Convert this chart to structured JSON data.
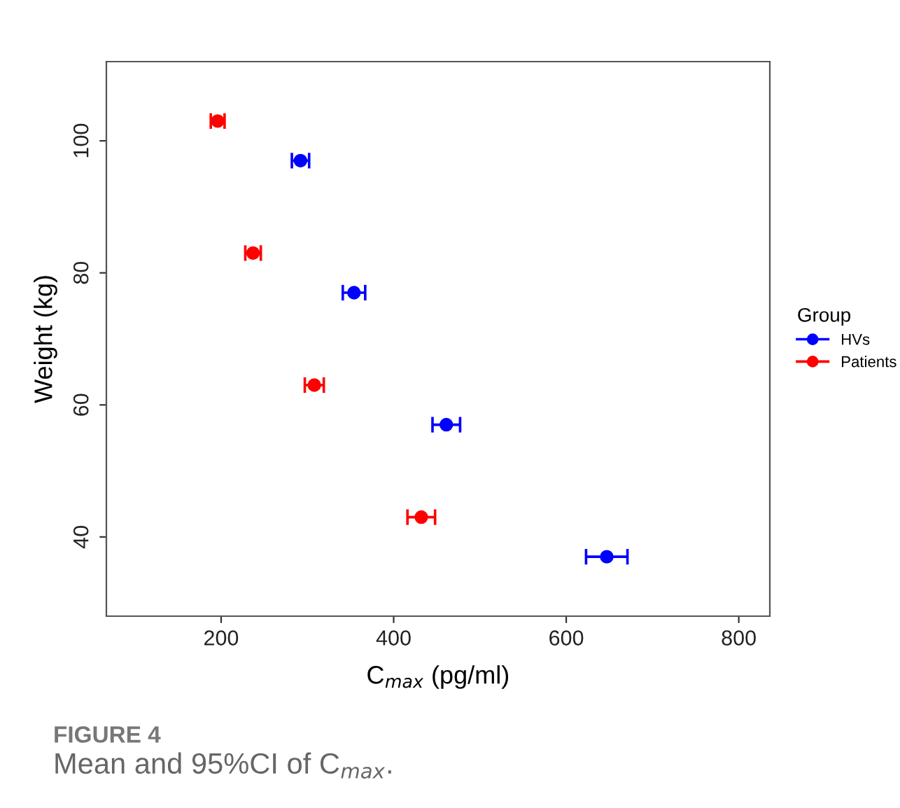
{
  "chart_data": {
    "type": "scatter",
    "xlabel": "C$_{max}$ (pg/ml)",
    "ylabel": "Weight (kg)",
    "legend_title": "Group",
    "legend": "right",
    "marker": "circle",
    "grid": false,
    "xlim": [
      67,
      836
    ],
    "xticks": [
      200,
      400,
      600,
      800
    ],
    "ylim": [
      28,
      112
    ],
    "yticks": [
      40,
      60,
      80,
      100
    ],
    "series": [
      {
        "name": "HVs",
        "color": "#0000ff",
        "x": [
          292,
          354,
          461,
          647
        ],
        "values": [
          97,
          77,
          57,
          37
        ],
        "xerrors": [
          10,
          13,
          16,
          24
        ]
      },
      {
        "name": "Patients",
        "color": "#ff0000",
        "x": [
          196,
          237,
          308,
          432
        ],
        "values": [
          103,
          83,
          63,
          43
        ],
        "xerrors": [
          8,
          9,
          11,
          16
        ]
      }
    ],
    "annotations": [
      "FIGURE 4",
      "Mean and 95%CI of C$_{max}$."
    ]
  }
}
